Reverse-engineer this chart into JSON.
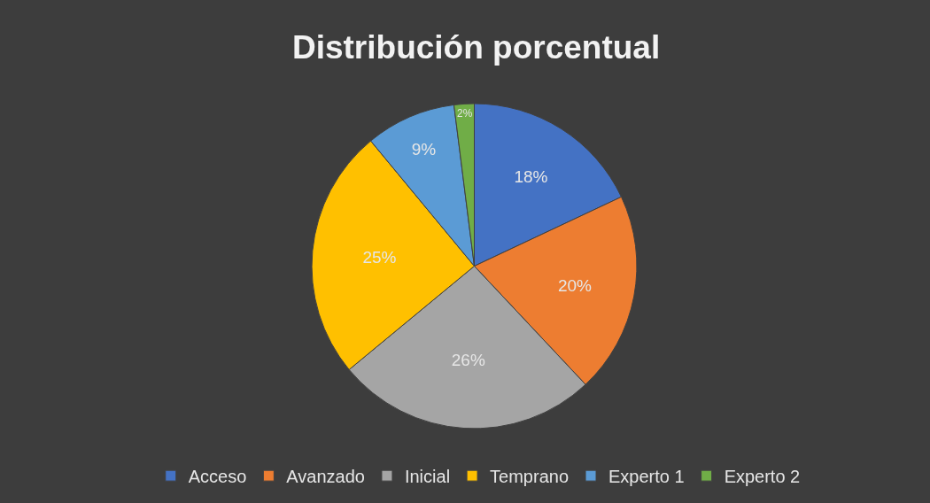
{
  "chart_data": {
    "type": "pie",
    "title": "Distribución porcentual",
    "categories": [
      "Acceso",
      "Avanzado",
      "Inicial",
      "Temprano",
      "Experto 1",
      "Experto 2"
    ],
    "values": [
      18,
      20,
      26,
      25,
      9,
      2
    ],
    "colors": [
      "#4472c4",
      "#ed7d31",
      "#a5a5a5",
      "#ffc000",
      "#5b9bd5",
      "#70ad47"
    ],
    "value_labels": [
      "18%",
      "20%",
      "26%",
      "25%",
      "9%",
      "2%"
    ],
    "legend": "bottom"
  }
}
